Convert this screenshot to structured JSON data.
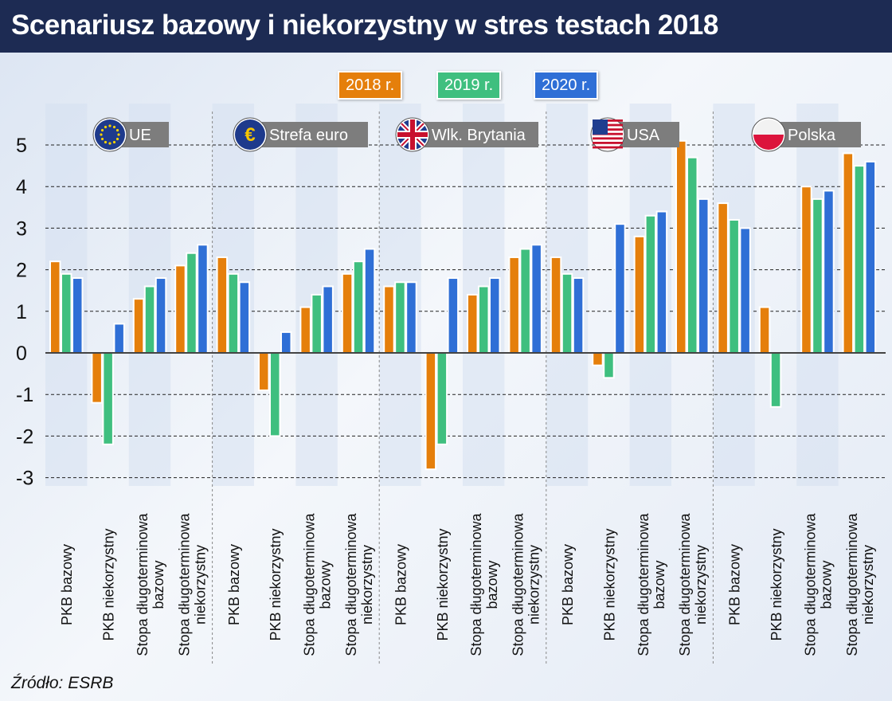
{
  "title": "Scenariusz bazowy i niekorzystny w stres testach 2018",
  "source": "Źródło: ESRB",
  "chart_data": {
    "type": "bar",
    "title": "Scenariusz bazowy i niekorzystny w stres testach 2018",
    "ylim": [
      -3,
      5
    ],
    "yticks": [
      "5",
      "4",
      "3",
      "2",
      "1",
      "0",
      "-1",
      "-2",
      "-3"
    ],
    "grid": true,
    "legend_placement": "top",
    "groups": [
      {
        "label": "UE",
        "flag": "eu-flag"
      },
      {
        "label": "Strefa euro",
        "flag": "euro-sign"
      },
      {
        "label": "Wlk. Brytania",
        "flag": "uk-flag"
      },
      {
        "label": "USA",
        "flag": "us-flag"
      },
      {
        "label": "Polska",
        "flag": "pl-flag"
      }
    ],
    "categories": [
      "PKB bazowy",
      "PKB niekorzystny",
      "Stopa długoterminowa\nbazowy",
      "Stopa długoterminowa\nniekorzystny",
      "PKB bazowy",
      "PKB niekorzystny",
      "Stopa długoterminowa\nbazowy",
      "Stopa długoterminowa\nniekorzystny",
      "PKB bazowy",
      "PKB niekorzystny",
      "Stopa długoterminowa\nbazowy",
      "Stopa długoterminowa\nniekorzystny",
      "PKB bazowy",
      "PKB niekorzystny",
      "Stopa długoterminowa\nbazowy",
      "Stopa długoterminowa\nniekorzystny",
      "PKB bazowy",
      "PKB niekorzystny",
      "Stopa długoterminowa\nbazowy",
      "Stopa długoterminowa\nniekorzystny"
    ],
    "series": [
      {
        "name": "2018 r.",
        "color": "#e57f0b",
        "values": [
          2.2,
          -1.2,
          1.3,
          2.1,
          2.3,
          -0.9,
          1.1,
          1.9,
          1.6,
          -2.8,
          1.4,
          2.3,
          2.3,
          -0.3,
          2.8,
          5.1,
          3.6,
          1.1,
          4.0,
          4.8
        ]
      },
      {
        "name": "2019 r.",
        "color": "#3fbf7f",
        "values": [
          1.9,
          -2.2,
          1.6,
          2.4,
          1.9,
          -2.0,
          1.4,
          2.2,
          1.7,
          -2.2,
          1.6,
          2.5,
          1.9,
          -0.6,
          3.3,
          4.7,
          3.2,
          -1.3,
          3.7,
          4.5
        ]
      },
      {
        "name": "2020 r.",
        "color": "#2f6fd6",
        "values": [
          1.8,
          0.7,
          1.8,
          2.6,
          1.7,
          0.5,
          1.6,
          2.5,
          1.7,
          1.8,
          1.8,
          2.6,
          1.8,
          3.1,
          3.4,
          3.7,
          3.0,
          null,
          3.9,
          4.6
        ]
      }
    ]
  }
}
